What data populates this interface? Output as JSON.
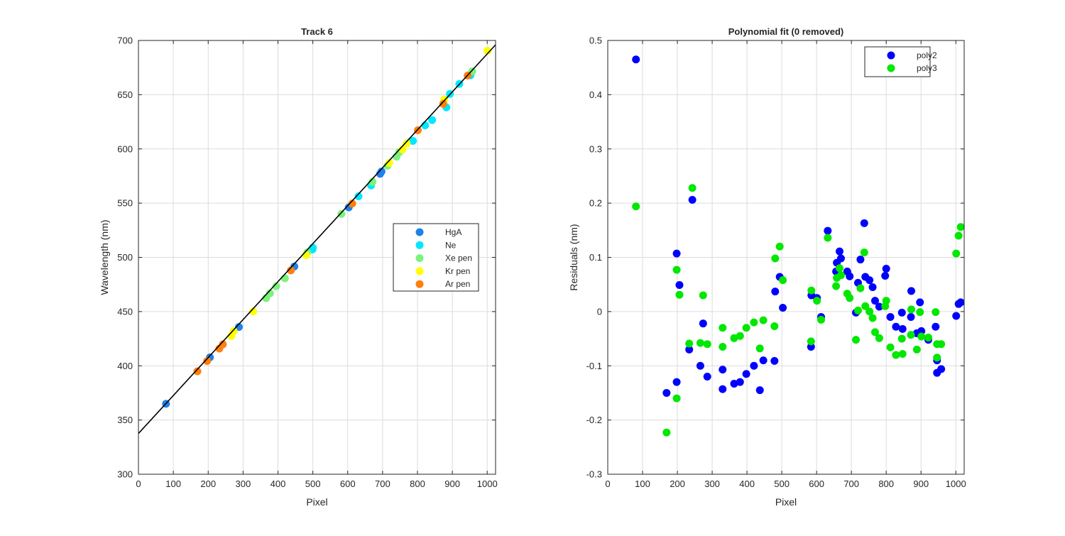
{
  "chart_data": [
    {
      "type": "scatter",
      "title": "Track 6",
      "xlabel": "Pixel",
      "ylabel": "Wavelength (nm)",
      "xlim": [
        0,
        1024
      ],
      "ylim": [
        300,
        700
      ],
      "xticks": [
        0,
        100,
        200,
        300,
        400,
        500,
        600,
        700,
        800,
        900,
        1000
      ],
      "yticks": [
        300,
        350,
        400,
        450,
        500,
        550,
        600,
        650,
        700
      ],
      "grid": true,
      "legend_position": "right",
      "series": [
        {
          "name": "HgA",
          "color": "#1f82e8",
          "points": [
            [
              79,
              365.0
            ],
            [
              205,
              407.8
            ],
            [
              288,
              435.8
            ],
            [
              447,
              491.6
            ],
            [
              603,
              546.1
            ],
            [
              693,
              577.0
            ],
            [
              697,
              579.1
            ]
          ]
        },
        {
          "name": "Ne",
          "color": "#00e8ff",
          "points": [
            [
              499,
              507.3
            ],
            [
              500,
              508.9
            ],
            [
              631,
              556.3
            ],
            [
              667,
              566.3
            ],
            [
              787,
              607.4
            ],
            [
              822,
              621.7
            ],
            [
              842,
              626.6
            ],
            [
              883,
              638.3
            ],
            [
              893,
              650.7
            ],
            [
              920,
              659.9
            ],
            [
              952,
              667.8
            ]
          ]
        },
        {
          "name": "Xe pen",
          "color": "#7cf27c",
          "points": [
            [
              366,
              462.4
            ],
            [
              377,
              466.8
            ],
            [
              395,
              473.4
            ],
            [
              420,
              480.7
            ],
            [
              484,
              504.4
            ],
            [
              582,
              540.0
            ],
            [
              671,
              569.6
            ],
            [
              714,
              584.5
            ],
            [
              740,
              592.9
            ],
            [
              748,
              597.1
            ],
            [
              957,
              671.5
            ]
          ]
        },
        {
          "name": "Kr pen",
          "color": "#ffff00",
          "points": [
            [
              266,
              427.4
            ],
            [
              273,
              431.9
            ],
            [
              329,
              450.2
            ],
            [
              481,
              502.0
            ],
            [
              719,
              587.1
            ],
            [
              757,
              599.4
            ],
            [
              769,
              605.1
            ],
            [
              877,
              645.6
            ],
            [
              1001,
              690.5
            ]
          ]
        },
        {
          "name": "Ar pen",
          "color": "#ff7f0e",
          "points": [
            [
              169,
              394.9
            ],
            [
              197,
              404.4
            ],
            [
              232,
              415.9
            ],
            [
              242,
              419.8
            ],
            [
              437,
              488.0
            ],
            [
              613,
              549.6
            ],
            [
              801,
              617.2
            ],
            [
              874,
              641.6
            ],
            [
              944,
              667.7
            ]
          ]
        }
      ],
      "fit_line": {
        "color": "#000000",
        "x": [
          0,
          1024
        ],
        "y": [
          337.6,
          696.0
        ]
      }
    },
    {
      "type": "scatter",
      "title": "Polynomial fit  (0 removed)",
      "xlabel": "Pixel",
      "ylabel": "Residuals (nm)",
      "xlim": [
        0,
        1024
      ],
      "ylim": [
        -0.3,
        0.5
      ],
      "xticks": [
        0,
        100,
        200,
        300,
        400,
        500,
        600,
        700,
        800,
        900,
        1000
      ],
      "yticks": [
        -0.3,
        -0.2,
        -0.1,
        0,
        0.1,
        0.2,
        0.3,
        0.4,
        0.5
      ],
      "grid": true,
      "legend_position": "top-right",
      "series": [
        {
          "name": "poly2",
          "color": "#0000ff",
          "points": [
            [
              81,
              0.465
            ],
            [
              169,
              -0.15
            ],
            [
              198,
              -0.13
            ],
            [
              198,
              0.107
            ],
            [
              206,
              0.049
            ],
            [
              234,
              -0.07
            ],
            [
              243,
              0.206
            ],
            [
              266,
              -0.1
            ],
            [
              274,
              -0.022
            ],
            [
              286,
              -0.12
            ],
            [
              330,
              -0.107
            ],
            [
              330,
              -0.143
            ],
            [
              363,
              -0.133
            ],
            [
              380,
              -0.13
            ],
            [
              398,
              -0.115
            ],
            [
              420,
              -0.1
            ],
            [
              437,
              -0.145
            ],
            [
              447,
              -0.09
            ],
            [
              479,
              -0.091
            ],
            [
              481,
              0.037
            ],
            [
              494,
              0.064
            ],
            [
              503,
              0.007
            ],
            [
              584,
              -0.065
            ],
            [
              585,
              0.03
            ],
            [
              601,
              0.025
            ],
            [
              613,
              -0.01
            ],
            [
              632,
              0.149
            ],
            [
              656,
              0.074
            ],
            [
              658,
              0.09
            ],
            [
              666,
              0.111
            ],
            [
              670,
              0.098
            ],
            [
              688,
              0.074
            ],
            [
              695,
              0.065
            ],
            [
              713,
              -0.002
            ],
            [
              719,
              0.053
            ],
            [
              726,
              0.096
            ],
            [
              737,
              0.163
            ],
            [
              740,
              0.064
            ],
            [
              752,
              0.058
            ],
            [
              761,
              0.045
            ],
            [
              768,
              0.02
            ],
            [
              780,
              0.009
            ],
            [
              797,
              0.066
            ],
            [
              800,
              0.079
            ],
            [
              812,
              -0.01
            ],
            [
              828,
              -0.028
            ],
            [
              845,
              -0.002
            ],
            [
              847,
              -0.032
            ],
            [
              871,
              -0.01
            ],
            [
              872,
              0.038
            ],
            [
              888,
              -0.04
            ],
            [
              897,
              0.017
            ],
            [
              901,
              -0.036
            ],
            [
              921,
              -0.052
            ],
            [
              942,
              -0.028
            ],
            [
              946,
              -0.09
            ],
            [
              946,
              -0.113
            ],
            [
              958,
              -0.106
            ],
            [
              1001,
              -0.008
            ],
            [
              1008,
              0.014
            ],
            [
              1014,
              0.017
            ]
          ]
        },
        {
          "name": "poly3",
          "color": "#00e800",
          "points": [
            [
              81,
              0.194
            ],
            [
              169,
              -0.223
            ],
            [
              198,
              -0.16
            ],
            [
              198,
              0.077
            ],
            [
              206,
              0.031
            ],
            [
              234,
              -0.059
            ],
            [
              243,
              0.228
            ],
            [
              266,
              -0.058
            ],
            [
              274,
              0.03
            ],
            [
              286,
              -0.06
            ],
            [
              330,
              -0.03
            ],
            [
              330,
              -0.065
            ],
            [
              363,
              -0.049
            ],
            [
              380,
              -0.045
            ],
            [
              398,
              -0.03
            ],
            [
              420,
              -0.02
            ],
            [
              437,
              -0.068
            ],
            [
              447,
              -0.016
            ],
            [
              479,
              -0.027
            ],
            [
              481,
              0.098
            ],
            [
              494,
              0.12
            ],
            [
              503,
              0.058
            ],
            [
              584,
              -0.055
            ],
            [
              585,
              0.039
            ],
            [
              601,
              0.02
            ],
            [
              613,
              -0.015
            ],
            [
              632,
              0.136
            ],
            [
              656,
              0.047
            ],
            [
              658,
              0.062
            ],
            [
              666,
              0.08
            ],
            [
              670,
              0.067
            ],
            [
              688,
              0.033
            ],
            [
              695,
              0.025
            ],
            [
              713,
              -0.052
            ],
            [
              719,
              0.002
            ],
            [
              726,
              0.043
            ],
            [
              737,
              0.109
            ],
            [
              740,
              0.01
            ],
            [
              752,
              0.0
            ],
            [
              761,
              -0.012
            ],
            [
              768,
              -0.038
            ],
            [
              780,
              -0.049
            ],
            [
              797,
              0.01
            ],
            [
              800,
              0.02
            ],
            [
              812,
              -0.066
            ],
            [
              828,
              -0.08
            ],
            [
              845,
              -0.05
            ],
            [
              847,
              -0.078
            ],
            [
              871,
              -0.043
            ],
            [
              872,
              0.004
            ],
            [
              888,
              -0.07
            ],
            [
              897,
              -0.001
            ],
            [
              901,
              -0.046
            ],
            [
              921,
              -0.048
            ],
            [
              942,
              -0.001
            ],
            [
              946,
              -0.06
            ],
            [
              946,
              -0.085
            ],
            [
              958,
              -0.06
            ],
            [
              1001,
              0.107
            ],
            [
              1008,
              0.14
            ],
            [
              1014,
              0.156
            ]
          ]
        }
      ]
    }
  ]
}
